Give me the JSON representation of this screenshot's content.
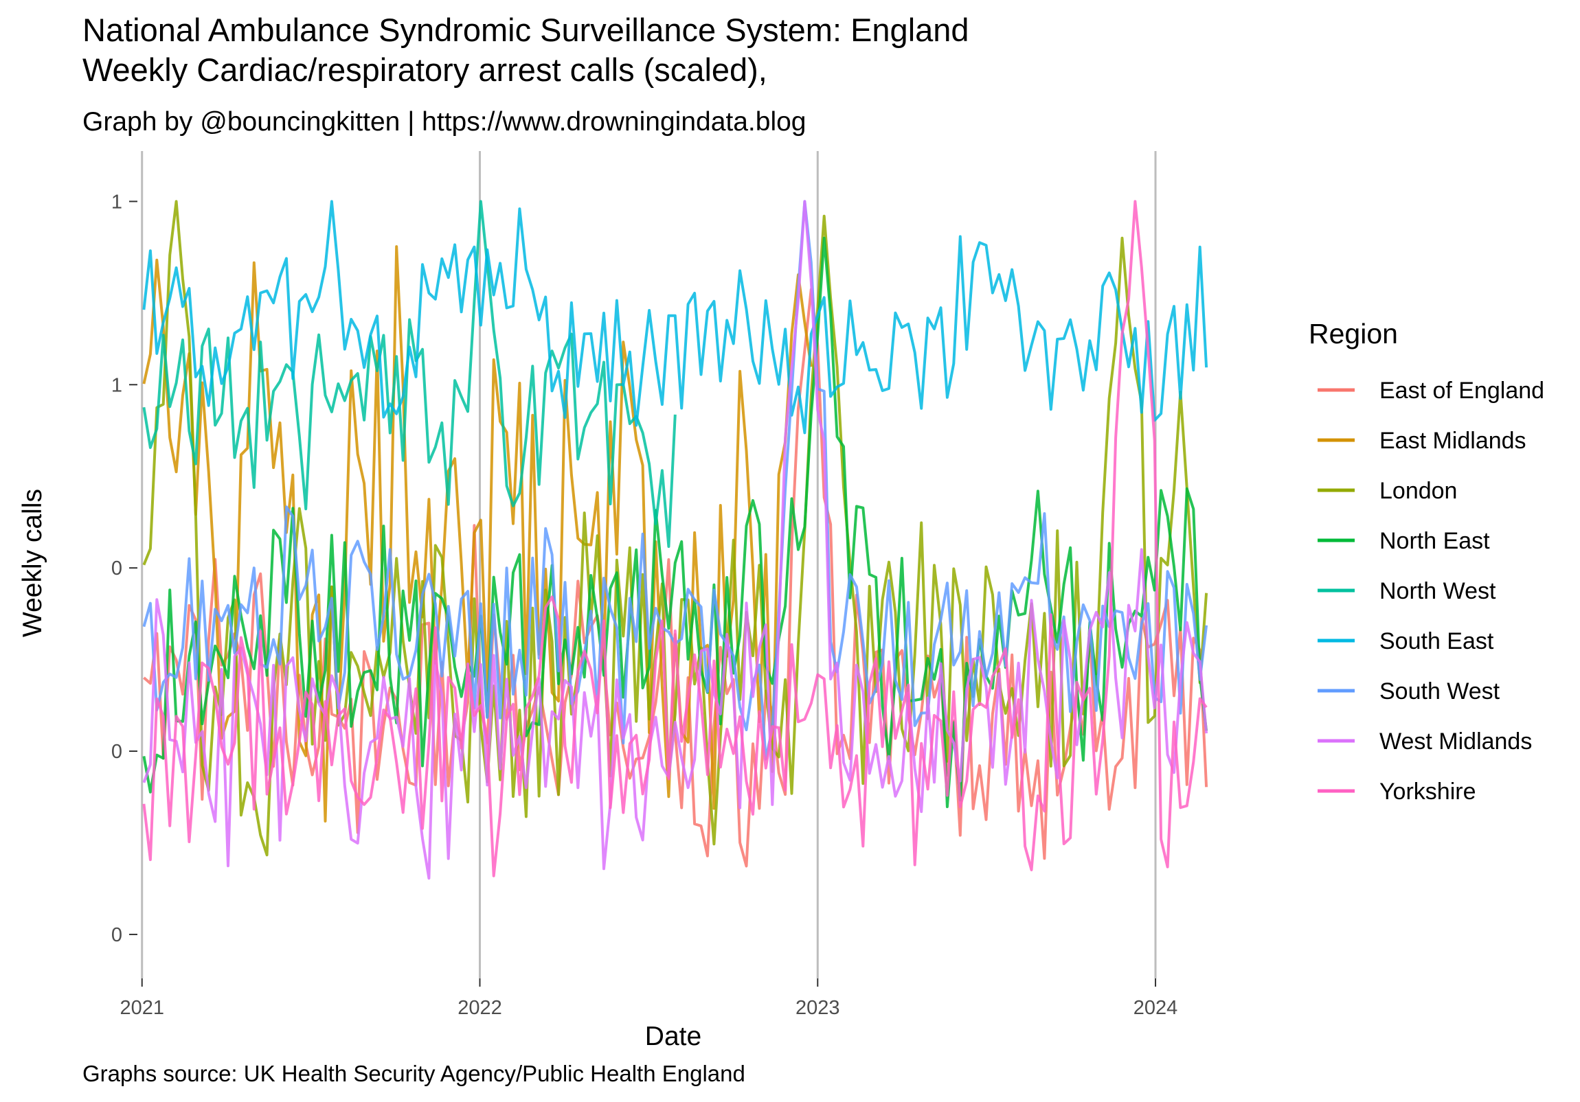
{
  "chart_data": {
    "type": "line",
    "title": "National Ambulance Syndromic Surveillance System: England",
    "title_line2": "Weekly Cardiac/respiratory arrest calls (scaled),",
    "subtitle": "Graph by @bouncingkitten | https://www.drowningindata.blog",
    "caption": "Graphs source: UK Health Security Agency/Public Health England",
    "xlabel": "Date",
    "ylabel": "Weekly calls",
    "x_ticks": [
      "2021",
      "2022",
      "2023",
      "2024"
    ],
    "y_tick_labels": [
      "0",
      "0",
      "0",
      "1",
      "1"
    ],
    "y_tick_values": [
      0,
      0.25,
      0.5,
      0.75,
      1.0
    ],
    "xlim": [
      "2020-12-27",
      "2024-03-10"
    ],
    "ylim": [
      -0.06,
      1.05
    ],
    "grid": "vertical major gridlines only",
    "legend_title": "Region",
    "legend_position": "right",
    "series": [
      {
        "name": "East of England",
        "color": "#F8766D",
        "start": "2021-01-03",
        "end": "2024-02-25",
        "base": 0.3,
        "amp": 0.13,
        "peaks": [
          [
            "2022-12-25",
            0.88
          ]
        ],
        "seed": 1
      },
      {
        "name": "East Midlands",
        "color": "#D39200",
        "start": "2021-01-03",
        "end": "2022-12-25",
        "base": 0.55,
        "amp": 0.24,
        "peaks": [
          [
            "2021-01-17",
            0.92
          ],
          [
            "2022-12-11",
            0.9
          ]
        ],
        "seed": 2
      },
      {
        "name": "London",
        "color": "#93AA00",
        "start": "2021-01-03",
        "end": "2024-02-25",
        "base": 0.35,
        "amp": 0.14,
        "peaks": [
          [
            "2021-02-07",
            1.0
          ],
          [
            "2023-01-08",
            0.98
          ],
          [
            "2023-11-26",
            0.95
          ],
          [
            "2024-01-28",
            0.74
          ]
        ],
        "seed": 3
      },
      {
        "name": "North East",
        "color": "#00BA38",
        "start": "2021-01-03",
        "end": "2024-02-25",
        "base": 0.38,
        "amp": 0.12,
        "peaks": [
          [
            "2023-01-08",
            0.95
          ]
        ],
        "seed": 4
      },
      {
        "name": "North West",
        "color": "#00C19F",
        "start": "2021-01-03",
        "end": "2022-07-31",
        "base": 0.72,
        "amp": 0.1,
        "peaks": [
          [
            "2022-01-02",
            1.0
          ]
        ],
        "seed": 5
      },
      {
        "name": "South East",
        "color": "#00B9E3",
        "start": "2021-01-03",
        "end": "2024-02-25",
        "base": 0.8,
        "amp": 0.08,
        "peaks": [
          [
            "2021-07-25",
            1.0
          ],
          [
            "2022-02-13",
            0.99
          ]
        ],
        "seed": 6
      },
      {
        "name": "South West",
        "color": "#619CFF",
        "start": "2021-01-03",
        "end": "2024-02-25",
        "base": 0.4,
        "amp": 0.1,
        "peaks": [
          [
            "2022-12-18",
            1.0
          ]
        ],
        "seed": 7
      },
      {
        "name": "West Midlands",
        "color": "#DB72FB",
        "start": "2021-01-03",
        "end": "2024-02-25",
        "base": 0.28,
        "amp": 0.12,
        "peaks": [
          [
            "2022-12-18",
            1.0
          ]
        ],
        "seed": 8
      },
      {
        "name": "Yorkshire",
        "color": "#FF61C3",
        "start": "2021-01-03",
        "end": "2024-02-25",
        "base": 0.25,
        "amp": 0.12,
        "peaks": [
          [
            "2023-12-10",
            1.0
          ]
        ],
        "seed": 9
      }
    ]
  }
}
